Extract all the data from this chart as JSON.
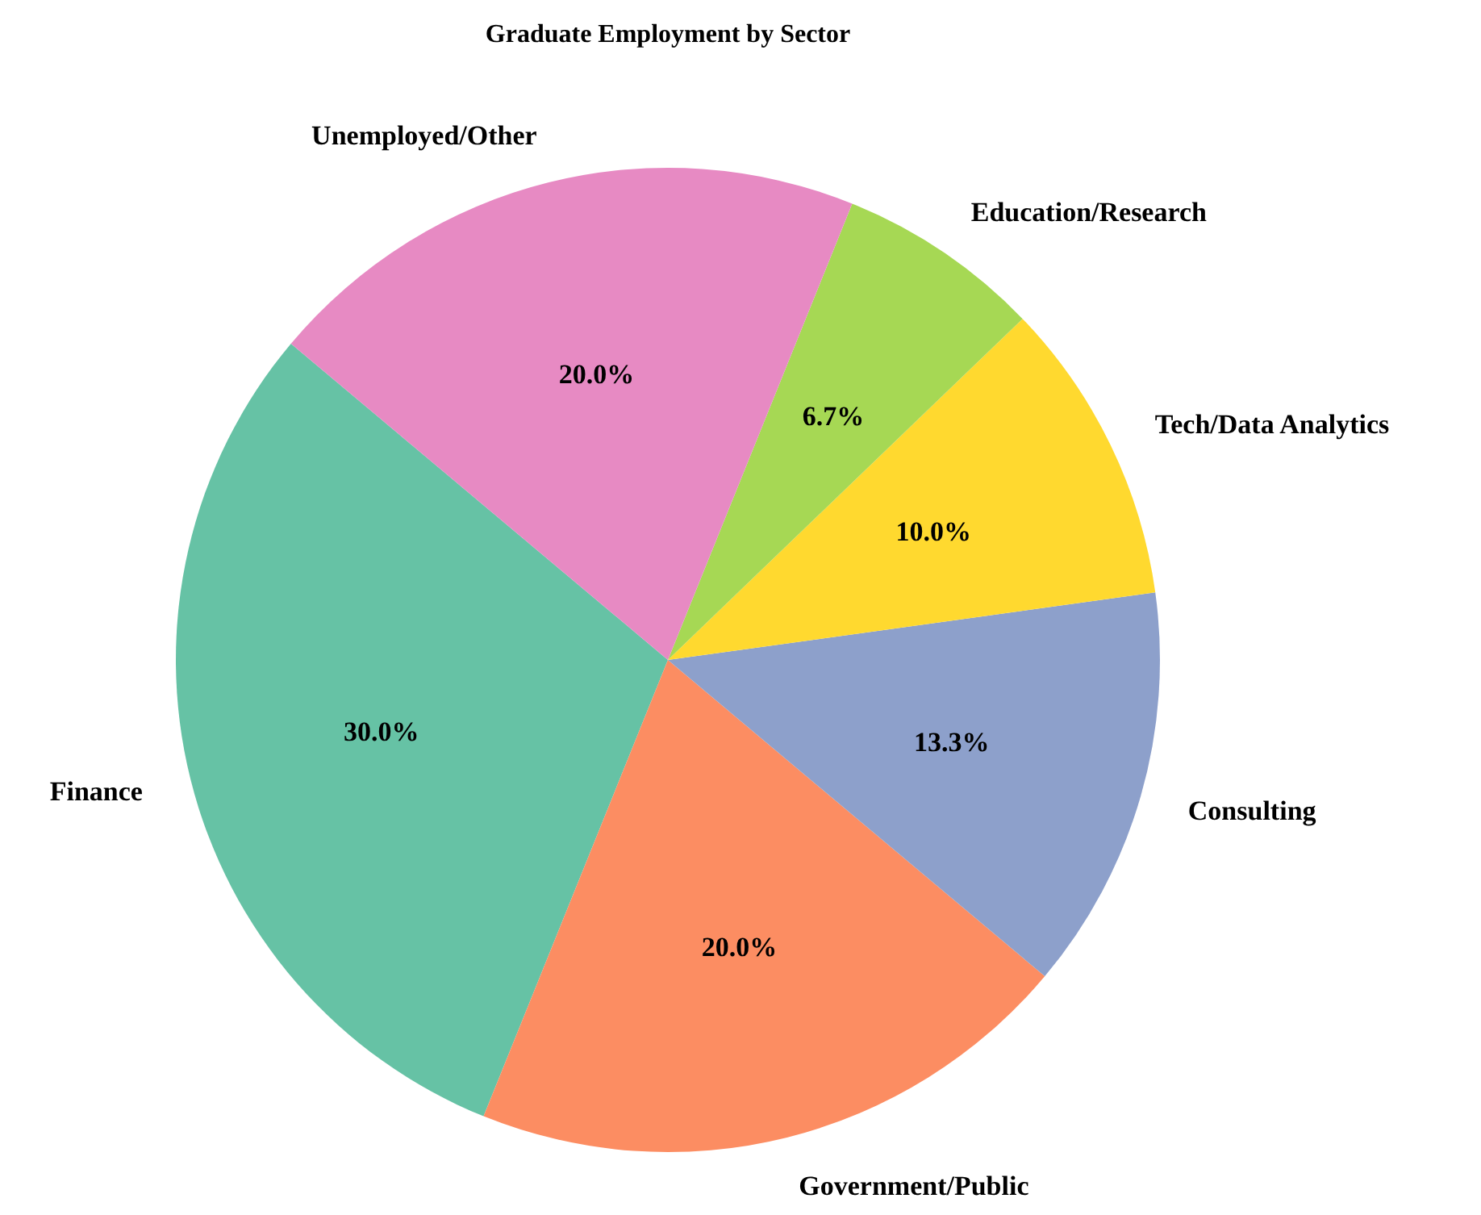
{
  "chart_data": {
    "type": "pie",
    "title": "Graduate Employment by Sector",
    "categories": [
      "Finance",
      "Government/Public",
      "Consulting",
      "Tech/Data Analytics",
      "Education/Research",
      "Unemployed/Other"
    ],
    "values": [
      30,
      20,
      13.3,
      10,
      6.7,
      20
    ],
    "colors": [
      "#66c2a5",
      "#fc8d62",
      "#8da0cb",
      "#ffd92f",
      "#a6d854",
      "#e78ac3"
    ],
    "value_labels": [
      "30.0%",
      "20.0%",
      "13.3%",
      "10.0%",
      "6.7%",
      "20.0%"
    ]
  }
}
